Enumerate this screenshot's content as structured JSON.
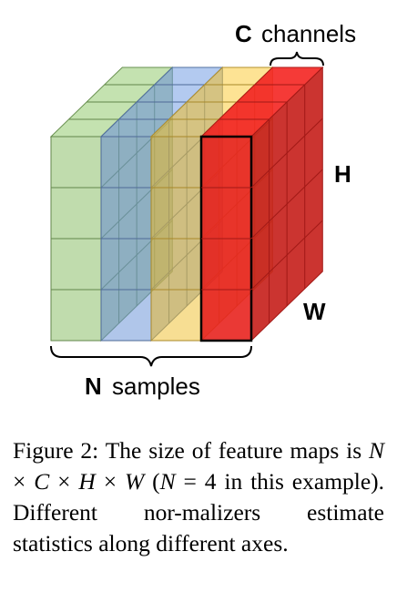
{
  "figure": {
    "channels_letter": "C",
    "channels_word": "channels",
    "height_label": "H",
    "width_label": "W",
    "samples_letter": "N",
    "samples_word": "samples",
    "sample_colors": [
      "#8cc06a",
      "#6f97d8",
      "#f0c23a",
      "#e8231f"
    ],
    "sample_count": 4
  },
  "caption": {
    "figure_label": "Figure 2:",
    "text_1": "The size of feature maps is",
    "math_N": "N",
    "times": "×",
    "math_C": "C",
    "math_H": "H",
    "math_W": "W",
    "paren_open": "(",
    "eq": "=",
    "four": "4",
    "text_2": "in this example).",
    "text_3": "Different nor-malizers estimate statistics along different axes."
  }
}
